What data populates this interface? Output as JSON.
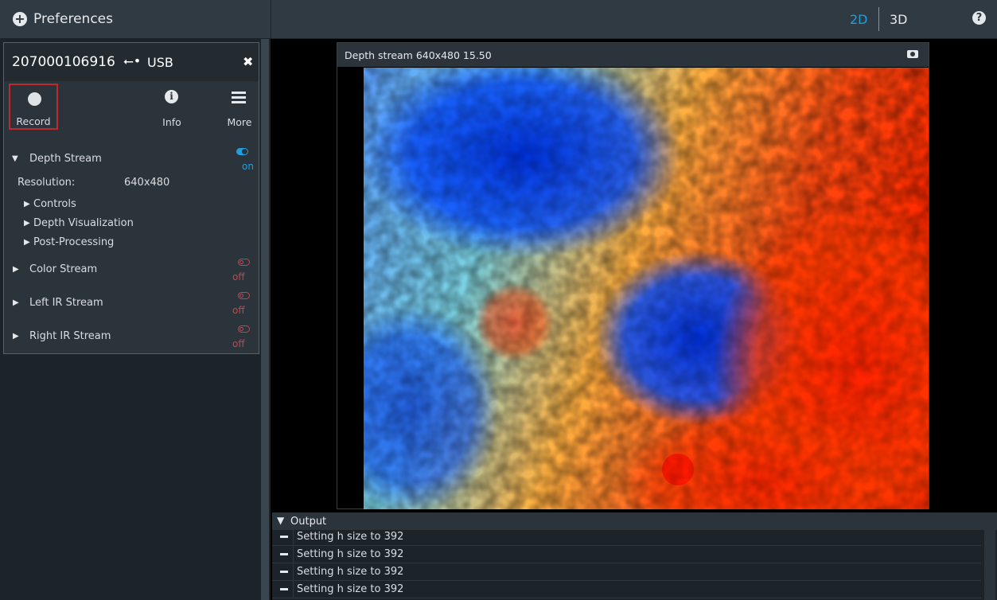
{
  "topbar": {
    "preferences_label": "Preferences",
    "view_2d": "2D",
    "view_3d": "3D",
    "accent_color": "#1e9fe0"
  },
  "device": {
    "serial": "207000106916",
    "connection": "USB",
    "toolbar": {
      "record_label": "Record",
      "info_label": "Info",
      "more_label": "More"
    },
    "depth_stream": {
      "label": "Depth Stream",
      "state": "on",
      "resolution_label": "Resolution:",
      "resolution_value": "640x480",
      "subsections": [
        "Controls",
        "Depth Visualization",
        "Post-Processing"
      ]
    },
    "streams": [
      {
        "label": "Color Stream",
        "state": "off"
      },
      {
        "label": "Left IR Stream",
        "state": "off"
      },
      {
        "label": "Right IR Stream",
        "state": "off"
      }
    ]
  },
  "viewer": {
    "title": "Depth stream  640x480  15.50",
    "colormap": "jet"
  },
  "output": {
    "title": "Output",
    "logs": [
      "Setting h size to 392",
      "Setting h size to 392",
      "Setting h size to 392",
      "Setting h size to 392"
    ]
  }
}
